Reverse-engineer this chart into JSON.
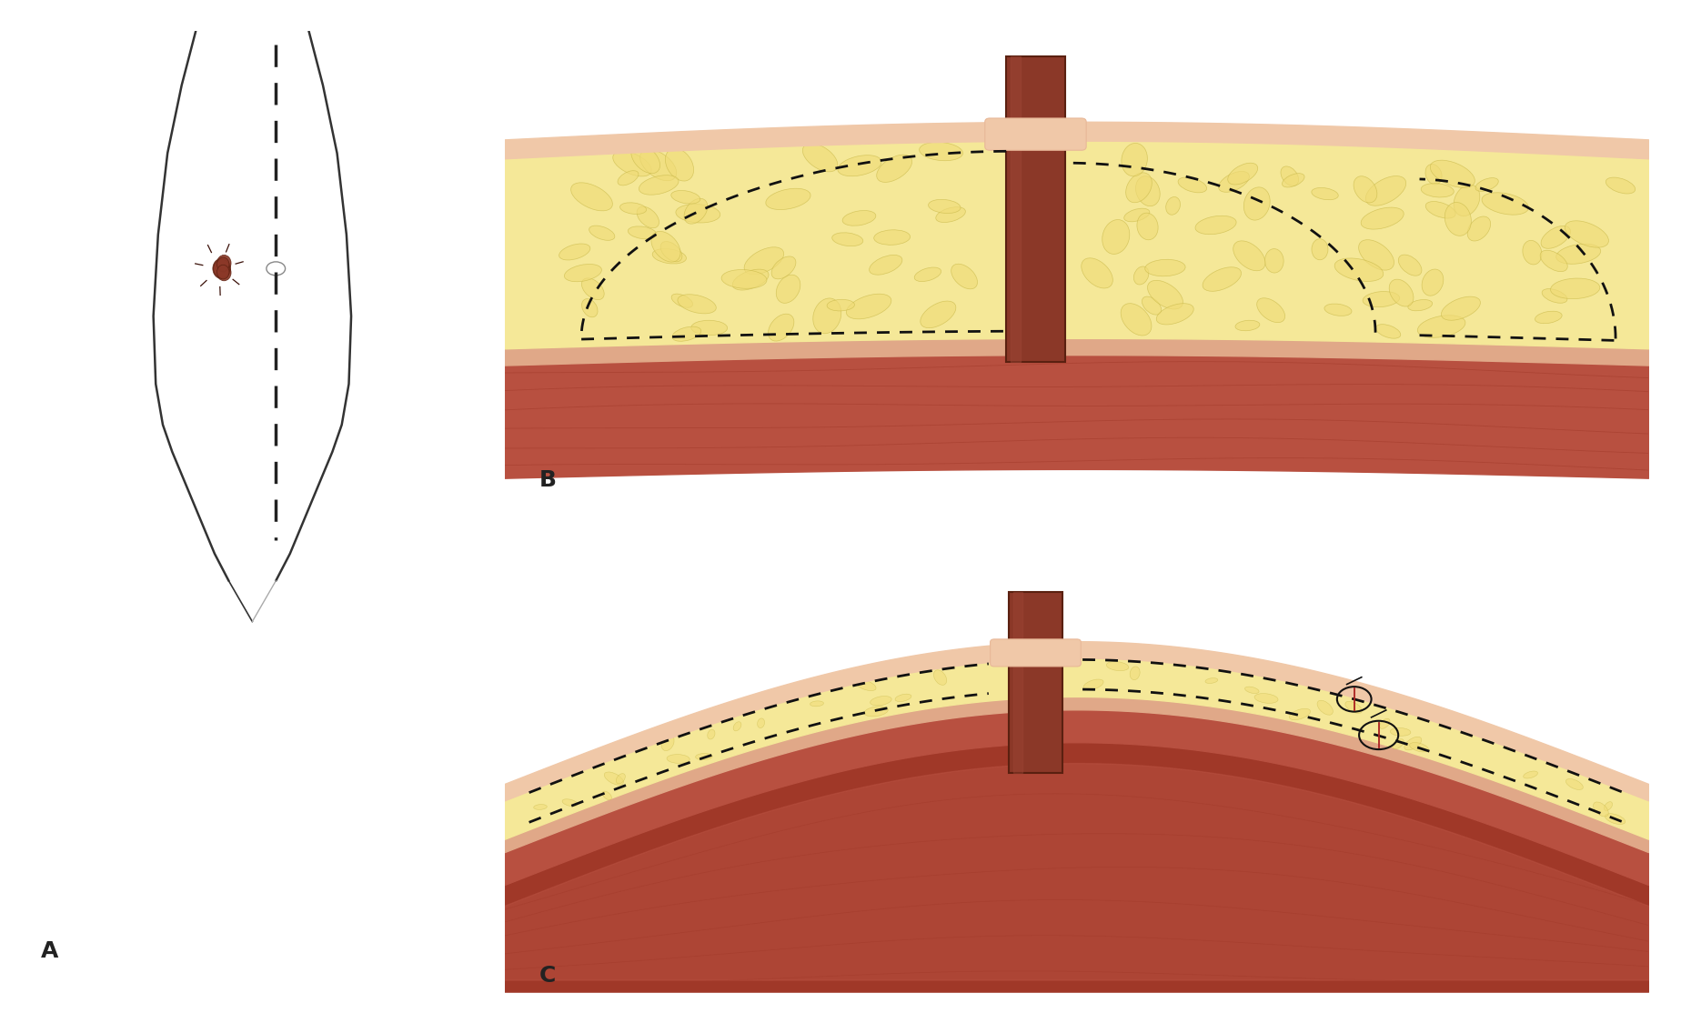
{
  "bg_color": "#ffffff",
  "label_A": "A",
  "label_B": "B",
  "label_C": "C",
  "skin_color": "#f0c8a8",
  "skin_color2": "#e8b898",
  "fat_color": "#f5e898",
  "fat_color_dark": "#e8d878",
  "muscle_color": "#b85040",
  "muscle_color2": "#a03828",
  "muscle_light": "#c86858",
  "fascia_color": "#e0a888",
  "stoma_color": "#8b3828",
  "stoma_dark": "#5a2010",
  "stoma_light": "#a04838",
  "dashed_color": "#111111",
  "body_outline_color": "#333333",
  "label_fontsize": 18
}
